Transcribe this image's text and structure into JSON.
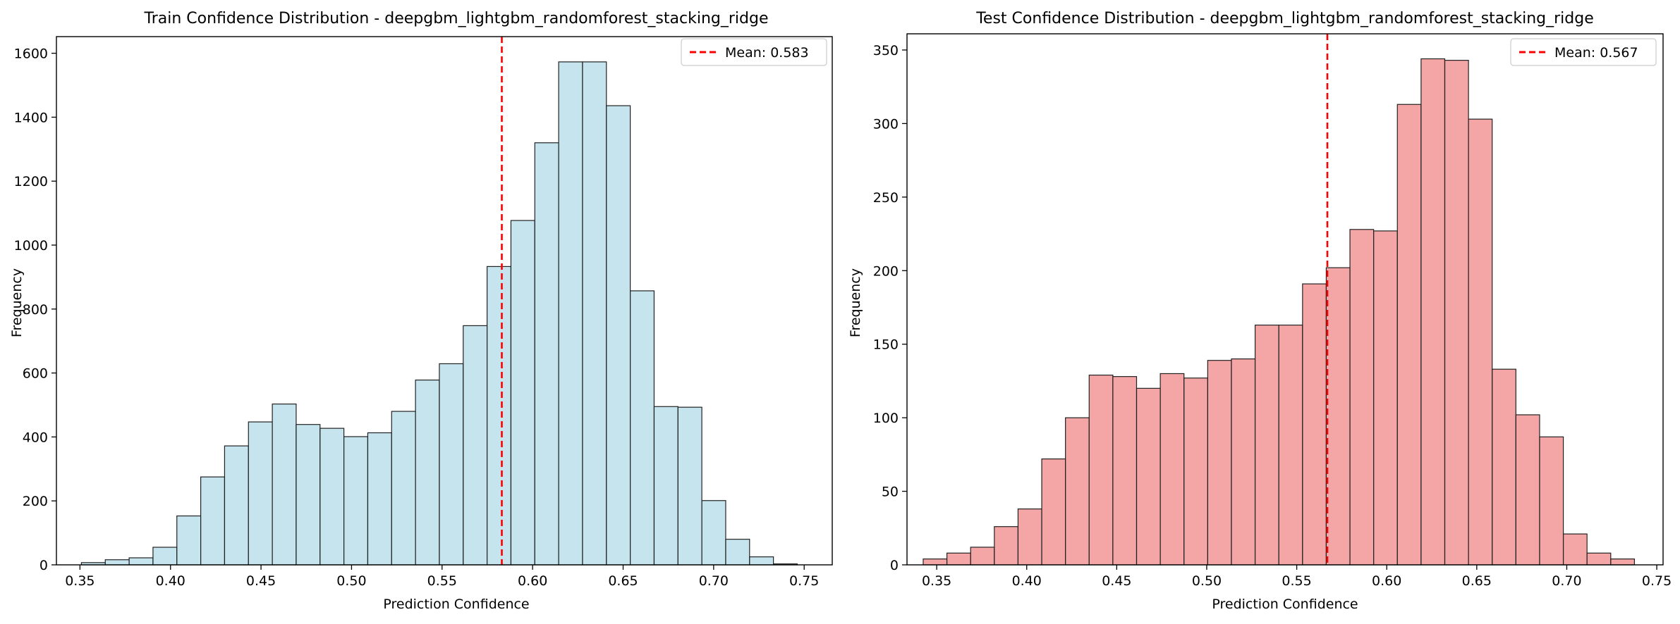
{
  "chart_data": [
    {
      "type": "bar",
      "title": "Train Confidence Distribution - deepgbm_lightgbm_randomforest_stacking_ridge",
      "xlabel": "Prediction Confidence",
      "ylabel": "Frequency",
      "xlim": [
        0.337,
        0.7655
      ],
      "ylim": [
        0,
        1652
      ],
      "xticks": [
        0.35,
        0.4,
        0.45,
        0.5,
        0.55,
        0.6,
        0.65,
        0.7,
        0.75
      ],
      "xtick_labels": [
        "0.35",
        "0.40",
        "0.45",
        "0.50",
        "0.55",
        "0.60",
        "0.65",
        "0.70",
        "0.75"
      ],
      "yticks": [
        0,
        200,
        400,
        600,
        800,
        1000,
        1200,
        1400,
        1600
      ],
      "ytick_labels": [
        "0",
        "200",
        "400",
        "600",
        "800",
        "1000",
        "1200",
        "1400",
        "1600"
      ],
      "grid": false,
      "bar_color": "#ADD8E6",
      "edge_color": "#222222",
      "bin_start": 0.3508,
      "bin_width": 0.01318,
      "values": [
        7,
        16,
        22,
        55,
        153,
        275,
        372,
        447,
        503,
        439,
        427,
        401,
        413,
        480,
        578,
        629,
        748,
        933,
        1077,
        1320,
        1573,
        1573,
        1436,
        857,
        495,
        493,
        201,
        80,
        25,
        3
      ],
      "mean": 0.583,
      "mean_color": "#FF0000",
      "legend": {
        "label": "Mean: 0.583",
        "position": "upper right"
      }
    },
    {
      "type": "bar",
      "title": "Test Confidence Distribution - deepgbm_lightgbm_randomforest_stacking_ridge",
      "xlabel": "Prediction Confidence",
      "ylabel": "Frequency",
      "xlim": [
        0.3335,
        0.7535
      ],
      "ylim": [
        0,
        361
      ],
      "xticks": [
        0.35,
        0.4,
        0.45,
        0.5,
        0.55,
        0.6,
        0.65,
        0.7,
        0.75
      ],
      "xtick_labels": [
        "0.35",
        "0.40",
        "0.45",
        "0.50",
        "0.55",
        "0.60",
        "0.65",
        "0.70",
        "0.75"
      ],
      "yticks": [
        0,
        50,
        100,
        150,
        200,
        250,
        300,
        350
      ],
      "ytick_labels": [
        "0",
        "50",
        "100",
        "150",
        "200",
        "250",
        "300",
        "350"
      ],
      "grid": false,
      "bar_color": "#F08080",
      "edge_color": "#222222",
      "bin_start": 0.3425,
      "bin_width": 0.01317,
      "values": [
        4,
        8,
        12,
        26,
        38,
        72,
        100,
        129,
        128,
        120,
        130,
        127,
        139,
        140,
        163,
        163,
        191,
        202,
        228,
        227,
        313,
        344,
        343,
        303,
        133,
        102,
        87,
        21,
        8,
        4
      ],
      "mean": 0.567,
      "mean_color": "#FF0000",
      "legend": {
        "label": "Mean: 0.567",
        "position": "upper right"
      }
    }
  ]
}
